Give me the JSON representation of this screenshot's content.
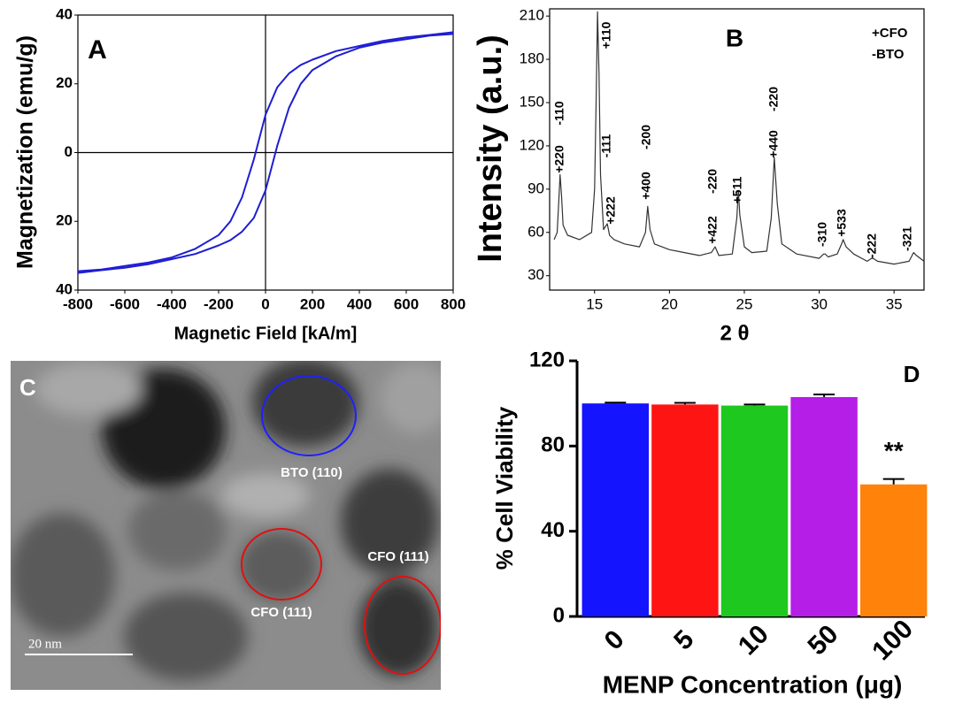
{
  "chart_data": [
    {
      "type": "line",
      "panel_label": "A",
      "xlabel": "Magnetic Field [kA/m]",
      "ylabel": "Magnetization (emu/g)",
      "x": [
        -800,
        -700,
        -600,
        -500,
        -400,
        -300,
        -200,
        -150,
        -100,
        -50,
        0,
        50,
        100,
        150,
        200,
        300,
        400,
        500,
        600,
        700,
        800
      ],
      "series": [
        {
          "color": "#1e1ed2",
          "values": [
            -34.5,
            -34,
            -33,
            -32,
            -30.5,
            -28,
            -24,
            -20,
            -13,
            -2,
            11,
            19,
            23,
            25.5,
            27,
            29.5,
            31,
            32.5,
            33.5,
            34.2,
            35
          ]
        },
        {
          "color": "#1e1ed2",
          "values": [
            -35,
            -34.2,
            -33.5,
            -32.5,
            -31,
            -29.5,
            -27,
            -25.5,
            -23,
            -19,
            -11,
            2,
            13,
            20,
            24,
            28,
            30.5,
            32,
            33,
            34,
            34.5
          ]
        }
      ],
      "xlim": [
        -800,
        800
      ],
      "ylim": [
        -40,
        40
      ],
      "xticks": [
        -800,
        -600,
        -400,
        -200,
        0,
        200,
        400,
        600,
        800
      ],
      "yticks": [
        {
          "value": -40,
          "label": "40"
        },
        {
          "value": -20,
          "label": "20"
        },
        0,
        20,
        40
      ],
      "zero_lines": true
    },
    {
      "type": "line",
      "panel_label": "B",
      "xlabel": "2 θ",
      "ylabel": "Intensity (a.u.)",
      "x": [
        12.3,
        12.5,
        12.6,
        12.7,
        12.8,
        12.9,
        13.2,
        14,
        14.8,
        15.0,
        15.1,
        15.2,
        15.3,
        15.4,
        15.6,
        15.85,
        16.0,
        16.3,
        17,
        18,
        18.4,
        18.55,
        18.7,
        19,
        20,
        21,
        22,
        22.8,
        23.05,
        23.3,
        24.2,
        24.5,
        24.6,
        24.7,
        25,
        25.5,
        26.5,
        26.8,
        27.0,
        27.2,
        27.5,
        28.5,
        30,
        30.3,
        30.4,
        30.6,
        31.2,
        31.5,
        31.6,
        31.8,
        32.3,
        33.2,
        33.5,
        33.6,
        33.9,
        35,
        36,
        36.2,
        36.3,
        36.5,
        37
      ],
      "series": [
        {
          "color": "#333333",
          "values": [
            55,
            60,
            80,
            100,
            85,
            65,
            58,
            55,
            60,
            90,
            150,
            213,
            170,
            100,
            62,
            66,
            58,
            55,
            52,
            50,
            60,
            78,
            62,
            52,
            48,
            46,
            44,
            46,
            50,
            44,
            45,
            70,
            89,
            72,
            50,
            46,
            47,
            70,
            112,
            80,
            52,
            45,
            42,
            45,
            45,
            43,
            45,
            52,
            55,
            50,
            45,
            40,
            42,
            42,
            40,
            38,
            40,
            44,
            46,
            44,
            40
          ]
        }
      ],
      "xlim": [
        12,
        37
      ],
      "ylim": [
        20,
        215
      ],
      "xticks": [
        15,
        20,
        25,
        30,
        35
      ],
      "yticks": [
        30,
        60,
        90,
        120,
        150,
        180,
        210
      ],
      "annotations": [
        "+220",
        "-110",
        "+110",
        "+222",
        "-111",
        "+400",
        "-200",
        "+422",
        "-220",
        "+511",
        "+440",
        "-220",
        "-310",
        "+533",
        "-222",
        "-321"
      ],
      "legend_texts": [
        "+CFO",
        "-BTO"
      ]
    },
    {
      "type": "bar",
      "panel_label": "D",
      "xlabel": "MENP Concentration (μg)",
      "ylabel": "% Cell Viability",
      "categories": [
        "0",
        "5",
        "10",
        "50",
        "100"
      ],
      "values": [
        100,
        99.5,
        99,
        103,
        62
      ],
      "errors": [
        0.4,
        0.8,
        0.5,
        1.2,
        2.5
      ],
      "colors": [
        "#1414ff",
        "#ff1414",
        "#1ec81e",
        "#b41ee6",
        "#ff820a"
      ],
      "ylim": [
        0,
        120
      ],
      "yticks": [
        0,
        40,
        80,
        120
      ],
      "annotation": "**"
    }
  ],
  "image": {
    "panel_label": "C",
    "labels": [
      "BTO (110)",
      "CFO (111)",
      "CFO (111)"
    ],
    "scale_bar": "20 nm"
  }
}
